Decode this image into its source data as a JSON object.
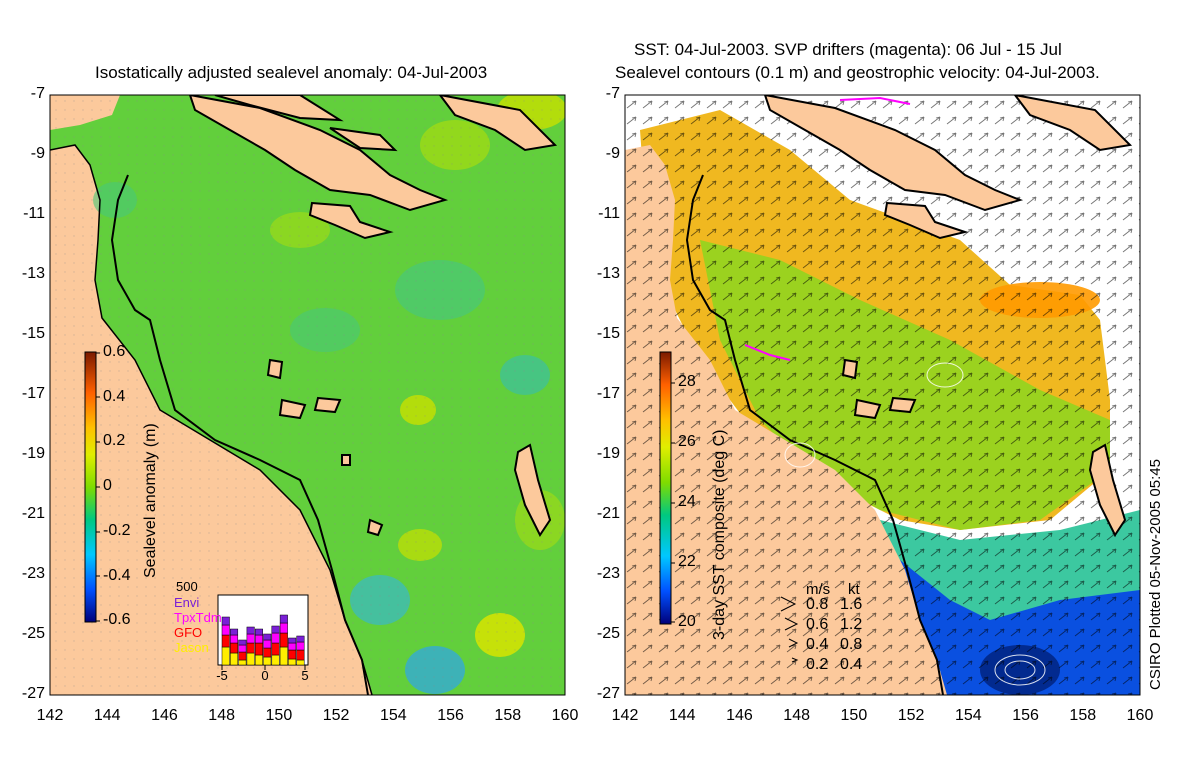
{
  "left_panel": {
    "title": "Isostatically adjusted sealevel anomaly: 04-Jul-2003",
    "y_ticks": [
      "-7",
      "-9",
      "-11",
      "-13",
      "-15",
      "-17",
      "-19",
      "-21",
      "-23",
      "-25",
      "-27"
    ],
    "x_ticks": [
      "142",
      "144",
      "146",
      "148",
      "150",
      "152",
      "154",
      "156",
      "158",
      "160"
    ],
    "colorbar": {
      "label": "Sealevel anomaly (m)",
      "ticks": [
        "0.6",
        "0.4",
        "0.2",
        "0",
        "-0.2",
        "-0.4",
        "-0.6"
      ],
      "range": [
        -0.6,
        0.6
      ]
    },
    "histogram": {
      "max_label": "500",
      "legend": [
        {
          "name": "Envi",
          "color": "#7a1fd6"
        },
        {
          "name": "TpxTdm",
          "color": "#ff00ff"
        },
        {
          "name": "GFO",
          "color": "#ff0000"
        },
        {
          "name": "Jason",
          "color": "#ffee00"
        }
      ],
      "x_ticks": [
        "-5",
        "0",
        "5"
      ]
    }
  },
  "right_panel": {
    "title_line1": "SST: 04-Jul-2003. SVP drifters (magenta): 06 Jul - 15 Jul",
    "title_line2": "Sealevel contours (0.1 m) and geostrophic velocity: 04-Jul-2003.",
    "y_ticks": [
      "-7",
      "-9",
      "-11",
      "-13",
      "-15",
      "-17",
      "-19",
      "-21",
      "-23",
      "-25",
      "-27"
    ],
    "x_ticks": [
      "142",
      "144",
      "146",
      "148",
      "150",
      "152",
      "154",
      "156",
      "158",
      "160"
    ],
    "colorbar": {
      "label": "3-day SST composite (deg C)",
      "ticks": [
        "28",
        "26",
        "24",
        "22",
        "20"
      ],
      "range": [
        20,
        29
      ]
    },
    "velocity_legend": {
      "header_ms": "m/s",
      "header_kt": "kt",
      "rows": [
        {
          "ms": "0.8",
          "kt": "1.6"
        },
        {
          "ms": "0.6",
          "kt": "1.2"
        },
        {
          "ms": "0.4",
          "kt": "0.8"
        },
        {
          "ms": "0.2",
          "kt": "0.4"
        }
      ]
    },
    "credit": "CSIRO Plotted 05-Nov-2005 05:45"
  },
  "colors": {
    "land": "#fcc99c",
    "sla_background": "#5fcf3a",
    "coastline": "#000000"
  }
}
